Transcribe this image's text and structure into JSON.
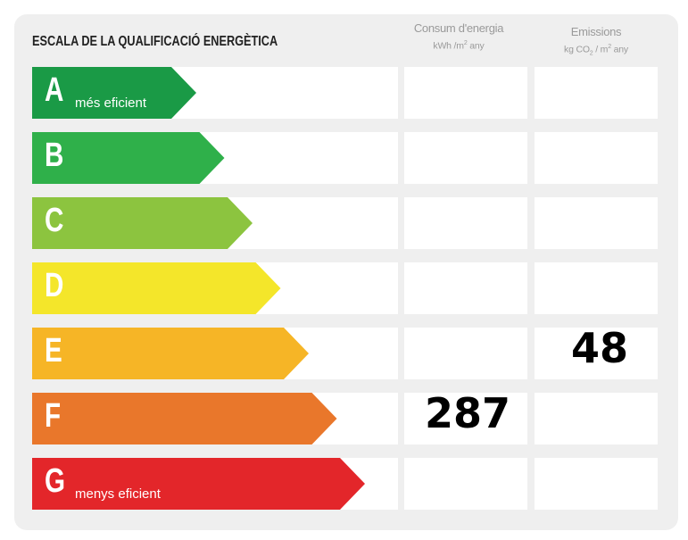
{
  "title": "ESCALA DE LA QUALIFICACIÓ ENERGÈTICA",
  "columns": {
    "energy": {
      "label": "Consum d'energia",
      "unit_prefix": "kWh /m",
      "unit_sup": "2",
      "unit_suffix": " any"
    },
    "emissions": {
      "label": "Emissions",
      "unit_prefix": "kg CO",
      "unit_sub": "2",
      "unit_mid": " / m",
      "unit_sup": "2",
      "unit_suffix": " any"
    }
  },
  "classes": [
    {
      "letter": "A",
      "note": "més eficient",
      "color": "#1a9a46"
    },
    {
      "letter": "B",
      "note": "",
      "color": "#2fb04a"
    },
    {
      "letter": "C",
      "note": "",
      "color": "#8cc43f"
    },
    {
      "letter": "D",
      "note": "",
      "color": "#f4e62a"
    },
    {
      "letter": "E",
      "note": "",
      "color": "#f6b526"
    },
    {
      "letter": "F",
      "note": "",
      "color": "#e9772b"
    },
    {
      "letter": "G",
      "note": "menys eficient",
      "color": "#e3262a"
    }
  ],
  "results": {
    "energy_value": "287",
    "energy_class": "F",
    "emissions_value": "48",
    "emissions_class": "E"
  }
}
